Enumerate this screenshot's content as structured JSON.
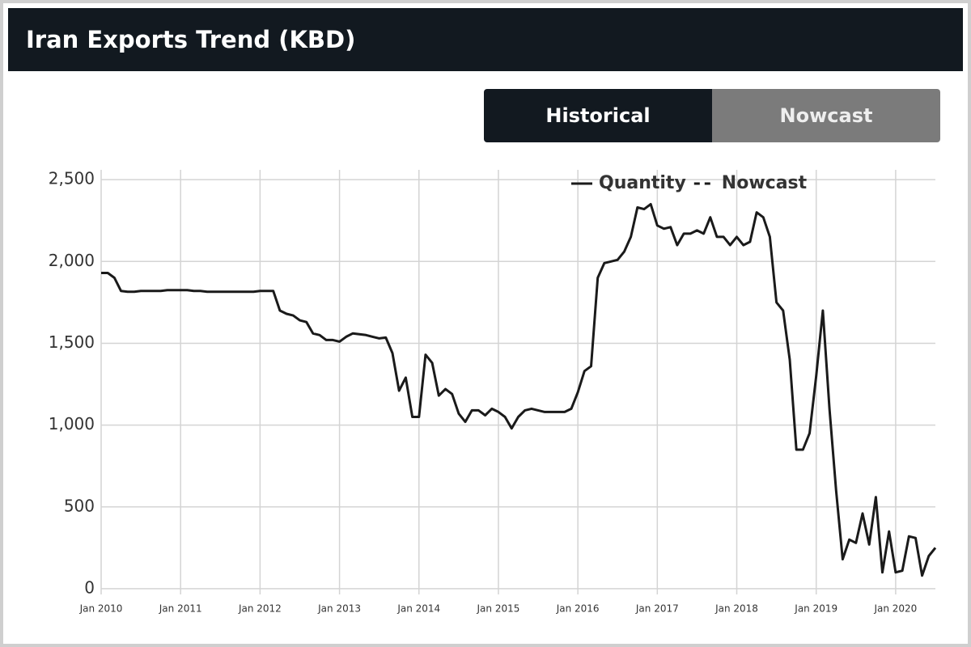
{
  "header": {
    "title": "Iran Exports Trend (KBD)"
  },
  "tabs": [
    "Historical",
    "Nowcast"
  ],
  "chart_data": {
    "type": "line",
    "x": [
      "2010-01",
      "2010-02",
      "2010-03",
      "2010-04",
      "2010-05",
      "2010-06",
      "2010-07",
      "2010-08",
      "2010-09",
      "2010-10",
      "2010-11",
      "2010-12",
      "2011-01",
      "2011-02",
      "2011-03",
      "2011-04",
      "2011-05",
      "2011-06",
      "2011-07",
      "2011-08",
      "2011-09",
      "2011-10",
      "2011-11",
      "2011-12",
      "2012-01",
      "2012-02",
      "2012-03",
      "2012-04",
      "2012-05",
      "2012-06",
      "2012-07",
      "2012-08",
      "2012-09",
      "2012-10",
      "2012-11",
      "2012-12",
      "2013-01",
      "2013-02",
      "2013-03",
      "2013-04",
      "2013-05",
      "2013-06",
      "2013-07",
      "2013-08",
      "2013-09",
      "2013-10",
      "2013-11",
      "2013-12",
      "2014-01",
      "2014-02",
      "2014-03",
      "2014-04",
      "2014-05",
      "2014-06",
      "2014-07",
      "2014-08",
      "2014-09",
      "2014-10",
      "2014-11",
      "2014-12",
      "2015-01",
      "2015-02",
      "2015-03",
      "2015-04",
      "2015-05",
      "2015-06",
      "2015-07",
      "2015-08",
      "2015-09",
      "2015-10",
      "2015-11",
      "2015-12",
      "2016-01",
      "2016-02",
      "2016-03",
      "2016-04",
      "2016-05",
      "2016-06",
      "2016-07",
      "2016-08",
      "2016-09",
      "2016-10",
      "2016-11",
      "2016-12",
      "2017-01",
      "2017-02",
      "2017-03",
      "2017-04",
      "2017-05",
      "2017-06",
      "2017-07",
      "2017-08",
      "2017-09",
      "2017-10",
      "2017-11",
      "2017-12",
      "2018-01",
      "2018-02",
      "2018-03",
      "2018-04",
      "2018-05",
      "2018-06",
      "2018-07",
      "2018-08",
      "2018-09",
      "2018-10",
      "2018-11",
      "2018-12",
      "2019-01",
      "2019-02",
      "2019-03",
      "2019-04",
      "2019-05",
      "2019-06",
      "2019-07",
      "2019-08",
      "2019-09",
      "2019-10",
      "2019-11",
      "2019-12",
      "2020-01",
      "2020-02",
      "2020-03",
      "2020-04",
      "2020-05",
      "2020-06",
      "2020-07"
    ],
    "series": [
      {
        "name": "Quantity",
        "color": "#1a1a1a",
        "dash": false,
        "values": [
          1930,
          1930,
          1900,
          1820,
          1815,
          1815,
          1820,
          1820,
          1820,
          1820,
          1825,
          1825,
          1825,
          1825,
          1820,
          1820,
          1815,
          1815,
          1815,
          1815,
          1815,
          1815,
          1815,
          1815,
          1820,
          1820,
          1820,
          1700,
          1680,
          1670,
          1640,
          1630,
          1560,
          1550,
          1520,
          1520,
          1510,
          1540,
          1560,
          1555,
          1550,
          1540,
          1530,
          1535,
          1440,
          1210,
          1290,
          1050,
          1050,
          1430,
          1380,
          1180,
          1220,
          1190,
          1070,
          1020,
          1090,
          1090,
          1060,
          1100,
          1080,
          1050,
          980,
          1050,
          1090,
          1100,
          1090,
          1080,
          1080,
          1080,
          1080,
          1100,
          1200,
          1330,
          1360,
          1900,
          1990,
          2000,
          2010,
          2060,
          2150,
          2330,
          2320,
          2350,
          2220,
          2200,
          2210,
          2100,
          2170,
          2170,
          2190,
          2170,
          2270,
          2150,
          2150,
          2100,
          2150,
          2100,
          2120,
          2300,
          2270,
          2150,
          1750,
          1700,
          1400,
          850,
          850,
          950,
          1300,
          1700,
          1100,
          600,
          180,
          300,
          280,
          460,
          270,
          560,
          100,
          350,
          100,
          110,
          320,
          310,
          80,
          200,
          250
        ]
      },
      {
        "name": "Nowcast",
        "color": "#1a1a1a",
        "dash": true,
        "values": [
          null,
          null,
          null,
          null,
          null,
          null,
          null,
          null,
          null,
          null,
          null,
          null,
          null,
          null,
          null,
          null,
          null,
          null,
          null,
          null,
          null,
          null,
          null,
          null,
          null,
          null,
          null,
          null,
          null,
          null,
          null,
          null,
          null,
          null,
          null,
          null,
          null,
          null,
          null,
          null,
          null,
          null,
          null,
          null,
          null,
          null,
          null,
          null,
          null,
          null,
          null,
          null,
          null,
          null,
          null,
          null,
          null,
          null,
          null,
          null,
          null,
          null,
          null,
          null,
          null,
          null,
          null,
          null,
          null,
          null,
          null,
          null,
          null,
          null,
          null,
          null,
          null,
          null,
          null,
          null,
          null,
          null,
          null,
          null,
          null,
          null,
          null,
          null,
          null,
          null,
          null,
          null,
          null,
          null,
          null,
          null,
          null,
          null,
          null,
          null,
          null,
          null,
          null,
          null,
          null,
          null,
          null,
          null,
          null,
          null,
          null,
          null,
          null,
          null,
          null,
          null,
          null,
          null,
          null,
          null,
          null,
          null,
          null,
          null,
          null,
          null,
          null
        ]
      }
    ],
    "xlim": [
      "2010-01",
      "2020-07"
    ],
    "xticks": [
      {
        "value": "2010-01",
        "label": "Jan 2010"
      },
      {
        "value": "2011-01",
        "label": "Jan 2011"
      },
      {
        "value": "2012-01",
        "label": "Jan 2012"
      },
      {
        "value": "2013-01",
        "label": "Jan 2013"
      },
      {
        "value": "2014-01",
        "label": "Jan 2014"
      },
      {
        "value": "2015-01",
        "label": "Jan 2015"
      },
      {
        "value": "2016-01",
        "label": "Jan 2016"
      },
      {
        "value": "2017-01",
        "label": "Jan 2017"
      },
      {
        "value": "2018-01",
        "label": "Jan 2018"
      },
      {
        "value": "2019-01",
        "label": "Jan 2019"
      },
      {
        "value": "2020-01",
        "label": "Jan 2020"
      }
    ],
    "ylim": [
      -35,
      2560
    ],
    "yticks": [
      0,
      500,
      {
        "value": 1000,
        "label": "1,000"
      },
      {
        "value": 1500,
        "label": "1,500"
      },
      {
        "value": 2000,
        "label": "2,000"
      },
      {
        "value": 2500,
        "label": "2,500"
      }
    ],
    "grid": true
  }
}
